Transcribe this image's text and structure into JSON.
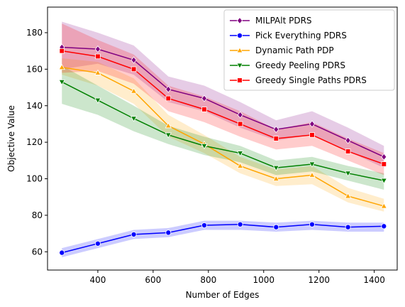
{
  "chart_data": {
    "type": "line",
    "xlabel": "Number of Edges",
    "ylabel": "Objective Value",
    "xlim": [
      218,
      1483
    ],
    "ylim": [
      50,
      194
    ],
    "xticks": [
      400,
      600,
      800,
      1000,
      1200,
      1400
    ],
    "yticks": [
      60,
      80,
      100,
      120,
      140,
      160,
      180
    ],
    "grid": false,
    "legend_position": "top-right",
    "x": [
      270,
      400,
      530,
      655,
      785,
      915,
      1045,
      1175,
      1305,
      1435
    ],
    "series": [
      {
        "name": "MILPAlt PDRS",
        "color": "#800080",
        "marker": "diamond",
        "values": [
          172,
          171,
          165,
          149,
          144,
          135,
          127,
          130,
          121,
          112
        ],
        "lower": [
          160,
          163,
          157,
          142,
          137,
          128,
          121,
          124,
          115,
          106
        ],
        "upper": [
          186,
          180,
          173,
          156,
          151,
          142,
          132,
          137,
          128,
          118
        ]
      },
      {
        "name": "Pick Everything PDRS",
        "color": "#0000ff",
        "marker": "circle",
        "values": [
          59.5,
          64.5,
          69.5,
          70.5,
          74.5,
          75,
          73.5,
          75,
          73.5,
          74
        ],
        "lower": [
          57,
          62,
          67,
          68,
          72,
          72,
          71,
          72,
          71,
          71
        ],
        "upper": [
          62,
          67,
          72,
          73,
          77,
          77,
          76,
          77,
          76,
          76
        ]
      },
      {
        "name": "Dynamic Path PDP",
        "color": "#ffa500",
        "marker": "triangle-up",
        "values": [
          161,
          158,
          148,
          129,
          119,
          107,
          100,
          102,
          90.5,
          85
        ],
        "lower": [
          157,
          151,
          141,
          123,
          114,
          103,
          96,
          97,
          87,
          82
        ],
        "upper": [
          166,
          164,
          155,
          135,
          124,
          112,
          105,
          107,
          95,
          89
        ]
      },
      {
        "name": "Greedy Peeling PDRS",
        "color": "#008000",
        "marker": "triangle-down",
        "values": [
          153,
          143,
          133,
          124,
          118,
          114,
          106,
          108,
          103,
          99
        ],
        "lower": [
          141,
          135,
          126,
          119,
          113,
          109,
          102,
          104,
          99,
          94
        ],
        "upper": [
          162,
          151,
          140,
          129,
          123,
          118,
          110,
          112,
          107,
          103
        ]
      },
      {
        "name": "Greedy Single Paths PDRS",
        "color": "#ff0000",
        "marker": "square",
        "values": [
          170,
          167,
          160,
          144,
          138,
          130,
          122,
          124,
          115,
          108
        ],
        "lower": [
          158,
          159,
          152,
          137,
          131,
          123,
          116,
          118,
          110,
          102
        ],
        "upper": [
          185,
          176,
          168,
          151,
          145,
          137,
          127,
          131,
          122,
          114
        ]
      }
    ]
  }
}
